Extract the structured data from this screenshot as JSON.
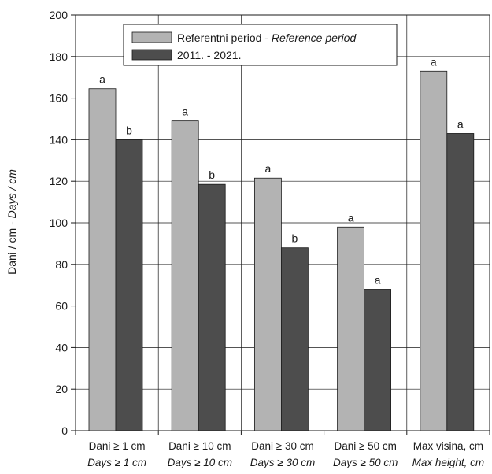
{
  "chart_data": {
    "type": "bar",
    "title": "",
    "ylabel_plain": "Dani / cm - ",
    "ylabel_italic": "Days / cm",
    "xlabel": "",
    "ylim": [
      0,
      200
    ],
    "yticks": [
      0,
      20,
      40,
      60,
      80,
      100,
      120,
      140,
      160,
      180,
      200
    ],
    "grid": true,
    "legend_position": "top-center",
    "categories": [
      {
        "line1": "Dani ≥ 1 cm",
        "line2": "Days ≥ 1 cm"
      },
      {
        "line1": "Dani ≥ 10 cm",
        "line2": "Days ≥ 10 cm"
      },
      {
        "line1": "Dani ≥ 30 cm",
        "line2": "Days ≥ 30 cm"
      },
      {
        "line1": "Dani ≥ 50 cm",
        "line2": "Days ≥ 50 cm"
      },
      {
        "line1": "Max visina, cm",
        "line2": "Max height, cm"
      }
    ],
    "series": [
      {
        "name_plain": "Referentni period - ",
        "name_italic": "Reference period",
        "color": "#b3b3b3",
        "values": [
          164.5,
          149,
          121.5,
          98,
          173
        ],
        "labels": [
          "a",
          "a",
          "a",
          "a",
          "a"
        ]
      },
      {
        "name_plain": "2011. - 2021.",
        "name_italic": "",
        "color": "#4d4d4d",
        "values": [
          140,
          118.5,
          88,
          68,
          143
        ],
        "labels": [
          "b",
          "b",
          "b",
          "a",
          "a"
        ]
      }
    ]
  }
}
